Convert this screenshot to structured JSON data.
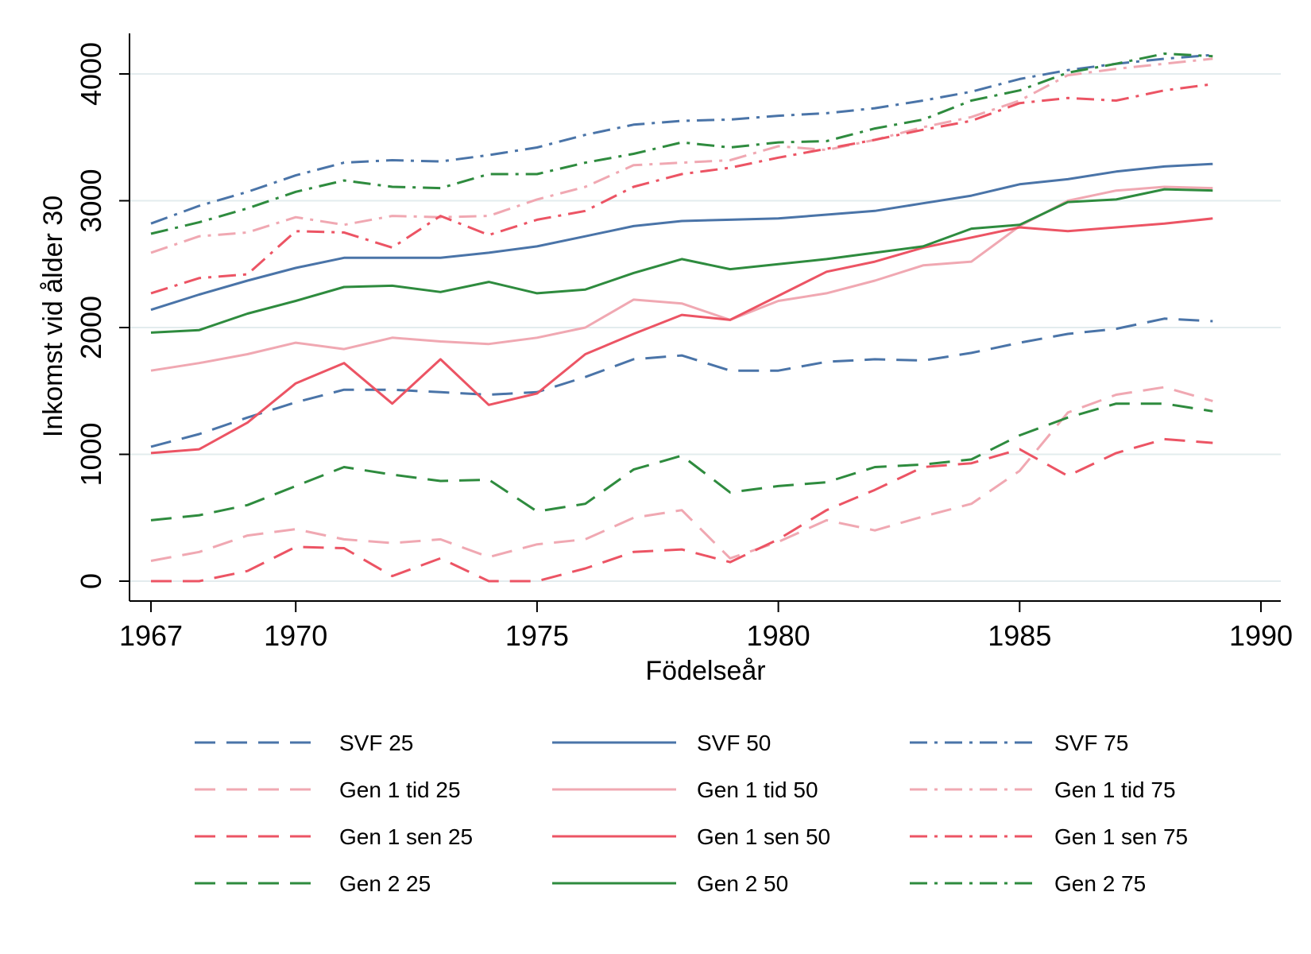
{
  "chart_data": {
    "type": "line",
    "xlabel": "Födelseår",
    "ylabel": "Inkomst vid ålder 30",
    "xlim": [
      1967,
      1990
    ],
    "ylim": [
      0,
      4300
    ],
    "xticks": [
      "1967",
      "1970",
      "1975",
      "1980",
      "1985",
      "1990"
    ],
    "yticks": [
      "0",
      "1000",
      "2000",
      "3000",
      "4000"
    ],
    "grid": true,
    "legend_placement": "bottom",
    "x": [
      1967,
      1968,
      1969,
      1970,
      1971,
      1972,
      1973,
      1974,
      1975,
      1976,
      1977,
      1978,
      1979,
      1980,
      1981,
      1982,
      1983,
      1984,
      1985,
      1986,
      1987,
      1988,
      1989
    ],
    "series": [
      {
        "name": "SVF 25",
        "color": "#4a74a8",
        "dash": "dashed",
        "values": [
          1060,
          1160,
          1290,
          1410,
          1510,
          1510,
          1490,
          1470,
          1490,
          1610,
          1750,
          1780,
          1660,
          1660,
          1730,
          1750,
          1740,
          1800,
          1880,
          1950,
          1990,
          2070,
          2050
        ]
      },
      {
        "name": "SVF 50",
        "color": "#4a74a8",
        "dash": "solid",
        "values": [
          2140,
          2260,
          2370,
          2470,
          2550,
          2550,
          2550,
          2590,
          2640,
          2720,
          2800,
          2840,
          2850,
          2860,
          2890,
          2920,
          2980,
          3040,
          3130,
          3170,
          3230,
          3270,
          3290
        ]
      },
      {
        "name": "SVF 75",
        "color": "#4a74a8",
        "dash": "dashdot",
        "values": [
          2820,
          2960,
          3070,
          3200,
          3300,
          3320,
          3310,
          3360,
          3420,
          3520,
          3600,
          3630,
          3640,
          3670,
          3690,
          3730,
          3790,
          3860,
          3960,
          4030,
          4080,
          4120,
          4150
        ]
      },
      {
        "name": "Gen 1 tid 25",
        "color": "#f0a8b2",
        "dash": "dashed",
        "values": [
          160,
          230,
          360,
          410,
          330,
          300,
          330,
          190,
          290,
          330,
          500,
          560,
          180,
          310,
          480,
          400,
          510,
          610,
          870,
          1330,
          1470,
          1530,
          1420
        ]
      },
      {
        "name": "Gen 1 tid 50",
        "color": "#f0a8b2",
        "dash": "solid",
        "values": [
          1660,
          1720,
          1790,
          1880,
          1830,
          1920,
          1890,
          1870,
          1920,
          2000,
          2220,
          2190,
          2060,
          2210,
          2270,
          2370,
          2490,
          2520,
          2800,
          3000,
          3080,
          3110,
          3100
        ]
      },
      {
        "name": "Gen 1 tid 75",
        "color": "#f0a8b2",
        "dash": "dashdot",
        "values": [
          2590,
          2720,
          2750,
          2870,
          2810,
          2880,
          2870,
          2880,
          3010,
          3110,
          3280,
          3300,
          3320,
          3430,
          3400,
          3480,
          3580,
          3660,
          3790,
          3990,
          4040,
          4080,
          4120
        ]
      },
      {
        "name": "Gen 1 sen 25",
        "color": "#ec5464",
        "dash": "dashed",
        "values": [
          0,
          0,
          80,
          270,
          260,
          40,
          180,
          0,
          0,
          100,
          230,
          250,
          150,
          330,
          560,
          720,
          900,
          930,
          1040,
          830,
          1010,
          1120,
          1090
        ]
      },
      {
        "name": "Gen 1 sen 50",
        "color": "#ec5464",
        "dash": "solid",
        "values": [
          1010,
          1040,
          1250,
          1560,
          1720,
          1400,
          1750,
          1390,
          1480,
          1790,
          1950,
          2100,
          2060,
          2250,
          2440,
          2520,
          2630,
          2710,
          2790,
          2760,
          2790,
          2820,
          2860
        ]
      },
      {
        "name": "Gen 1 sen 75",
        "color": "#ec5464",
        "dash": "dashdot",
        "values": [
          2270,
          2390,
          2420,
          2760,
          2750,
          2630,
          2880,
          2730,
          2850,
          2920,
          3110,
          3210,
          3260,
          3340,
          3410,
          3480,
          3560,
          3630,
          3770,
          3810,
          3790,
          3870,
          3920
        ]
      },
      {
        "name": "Gen 2 25",
        "color": "#2e8b3e",
        "dash": "dashed",
        "values": [
          480,
          520,
          600,
          750,
          900,
          840,
          790,
          800,
          550,
          610,
          880,
          990,
          700,
          750,
          780,
          900,
          920,
          960,
          1150,
          1290,
          1400,
          1400,
          1340
        ]
      },
      {
        "name": "Gen 2 50",
        "color": "#2e8b3e",
        "dash": "solid",
        "values": [
          1960,
          1980,
          2110,
          2210,
          2320,
          2330,
          2280,
          2360,
          2270,
          2300,
          2430,
          2540,
          2460,
          2500,
          2540,
          2590,
          2640,
          2780,
          2810,
          2990,
          3010,
          3090,
          3080
        ]
      },
      {
        "name": "Gen 2 75",
        "color": "#2e8b3e",
        "dash": "dashdot",
        "values": [
          2740,
          2830,
          2940,
          3070,
          3160,
          3110,
          3100,
          3210,
          3210,
          3300,
          3370,
          3460,
          3420,
          3460,
          3470,
          3570,
          3640,
          3790,
          3870,
          4010,
          4080,
          4160,
          4140
        ]
      }
    ]
  }
}
